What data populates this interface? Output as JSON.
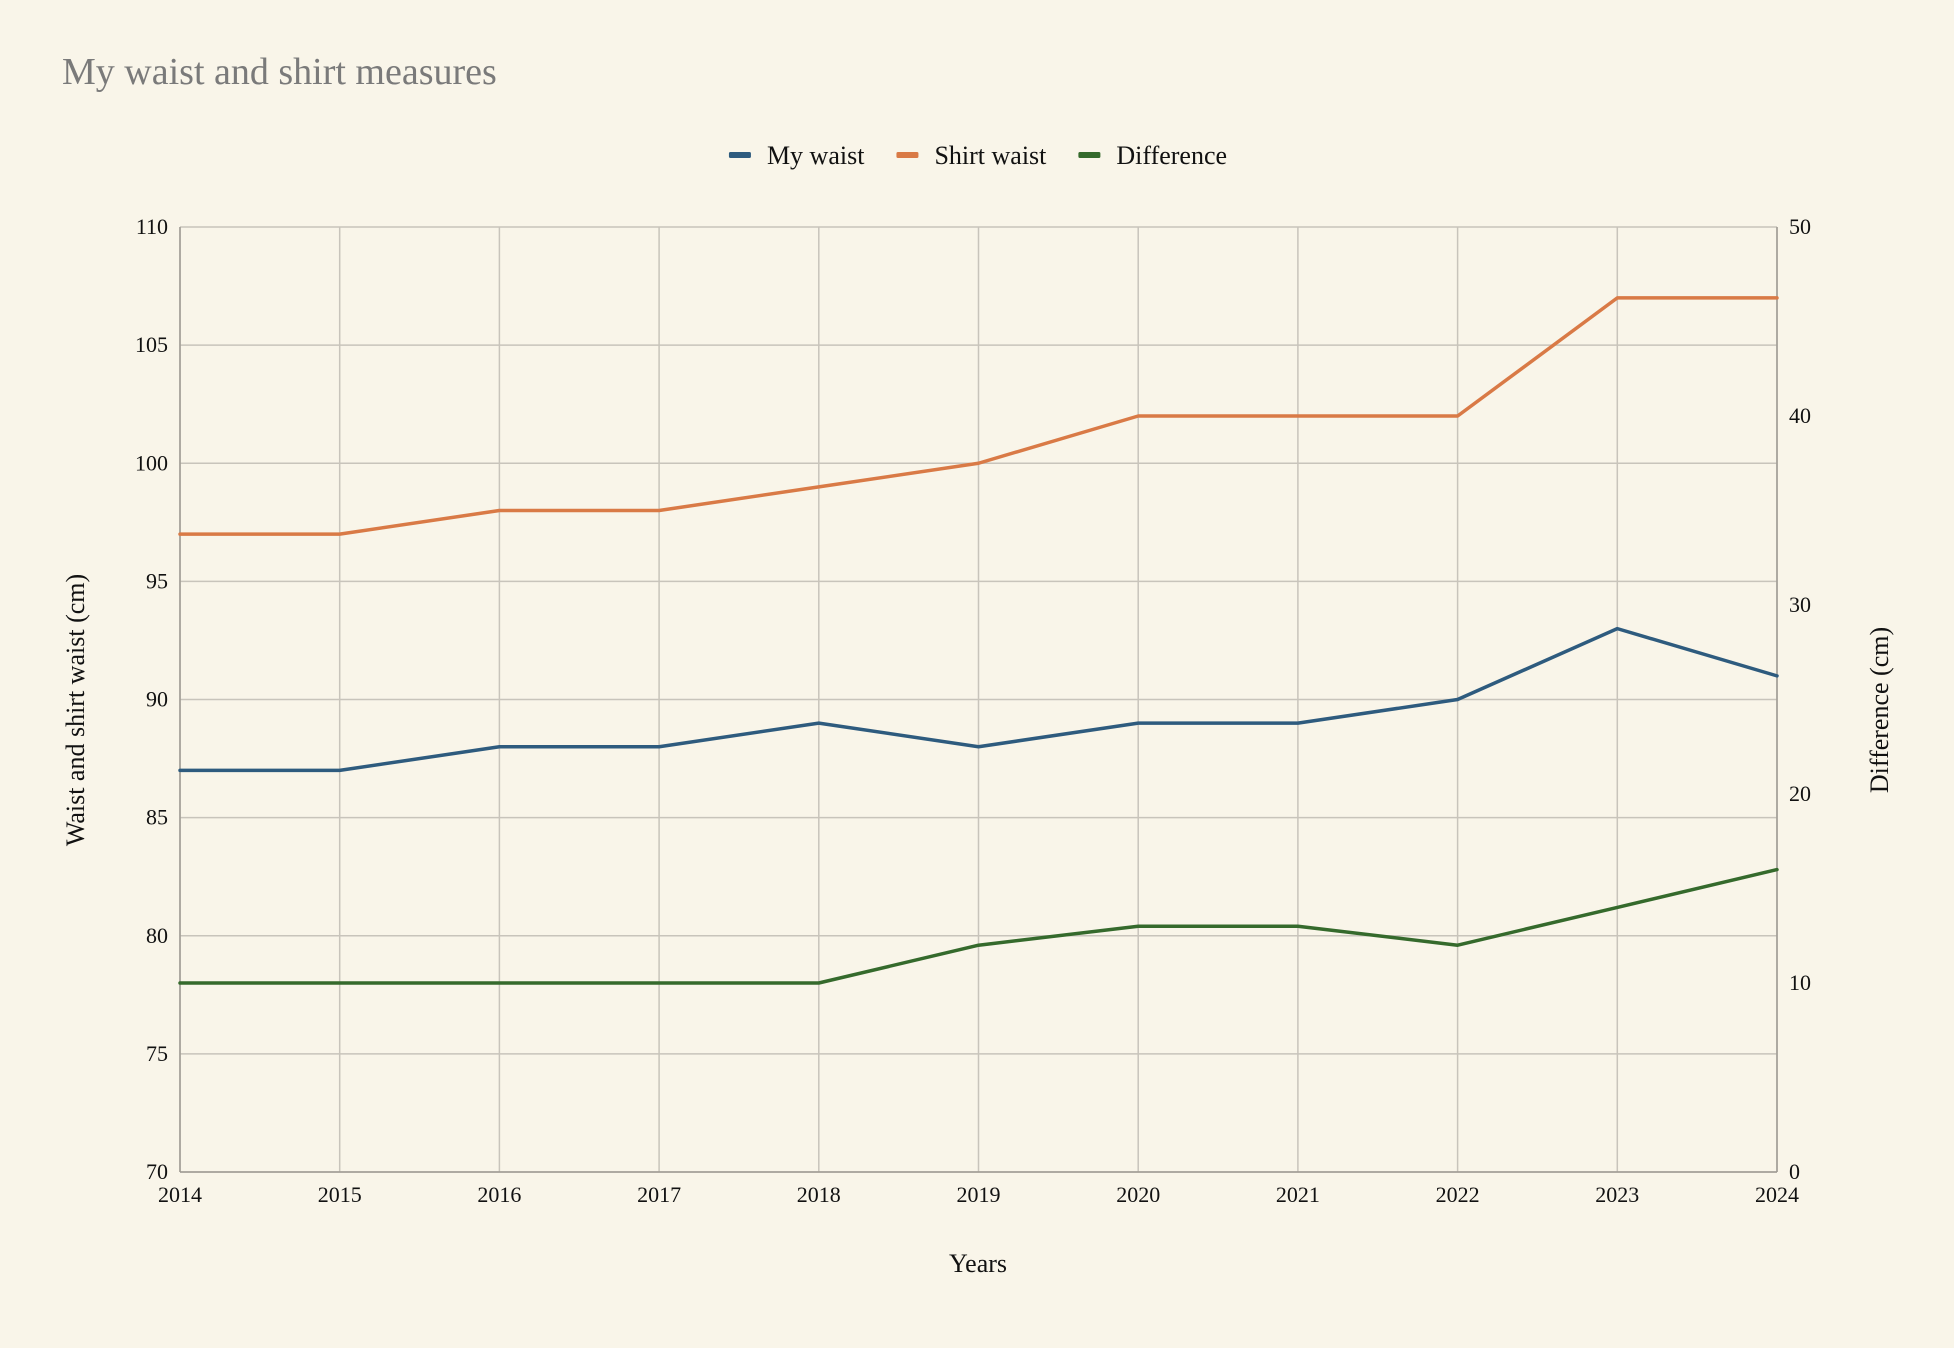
{
  "chart_data": {
    "type": "line",
    "title": "My waist and shirt measures",
    "xlabel": "Years",
    "ylabel_left": "Waist and shirt waist (cm)",
    "ylabel_right": "Difference (cm)",
    "x": [
      2014,
      2015,
      2016,
      2017,
      2018,
      2019,
      2020,
      2021,
      2022,
      2023,
      2024
    ],
    "ylim_left": [
      70,
      110
    ],
    "ylim_right": [
      0,
      50
    ],
    "yticks_left": [
      70,
      75,
      80,
      85,
      90,
      95,
      100,
      105,
      110
    ],
    "yticks_right": [
      0,
      10,
      20,
      30,
      40,
      50
    ],
    "grid": true,
    "legend_position": "top-center",
    "series": [
      {
        "name": "My waist",
        "axis": "left",
        "color": "#2e5b7e",
        "values": [
          87,
          87,
          88,
          88,
          89,
          88,
          89,
          89,
          90,
          93,
          91
        ]
      },
      {
        "name": "Shirt waist",
        "axis": "left",
        "color": "#d97a46",
        "values": [
          97,
          97,
          98,
          98,
          99,
          100,
          102,
          102,
          102,
          107,
          107
        ]
      },
      {
        "name": "Difference",
        "axis": "right",
        "color": "#356a2c",
        "values": [
          10,
          10,
          10,
          10,
          10,
          12,
          13,
          13,
          12,
          14,
          16
        ]
      }
    ]
  }
}
